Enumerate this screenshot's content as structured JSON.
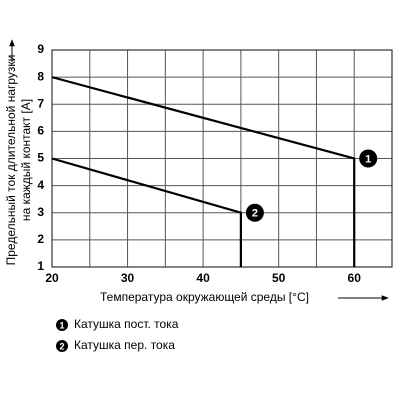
{
  "chart_data": {
    "type": "line",
    "ylabel": [
      "Предельный ток длительной нагрузки",
      "на каждый контакт [A]"
    ],
    "xlabel": "Температура окружающей среды [°C]",
    "xlim": [
      20,
      65
    ],
    "ylim": [
      1,
      9
    ],
    "xticks": [
      20,
      30,
      40,
      50,
      60
    ],
    "xgrid": [
      25,
      35,
      45,
      55,
      65
    ],
    "yticks": [
      1,
      2,
      3,
      4,
      5,
      6,
      7,
      8,
      9
    ],
    "grid": true,
    "series": [
      {
        "name": "Катушка пост. тока",
        "marker": "1",
        "color": "#000000",
        "x": [
          20,
          60,
          60
        ],
        "values": [
          8,
          5,
          1
        ]
      },
      {
        "name": "Катушка пер. тока",
        "marker": "2",
        "color": "#000000",
        "x": [
          20,
          45,
          45
        ],
        "values": [
          5,
          3,
          1
        ]
      }
    ]
  }
}
